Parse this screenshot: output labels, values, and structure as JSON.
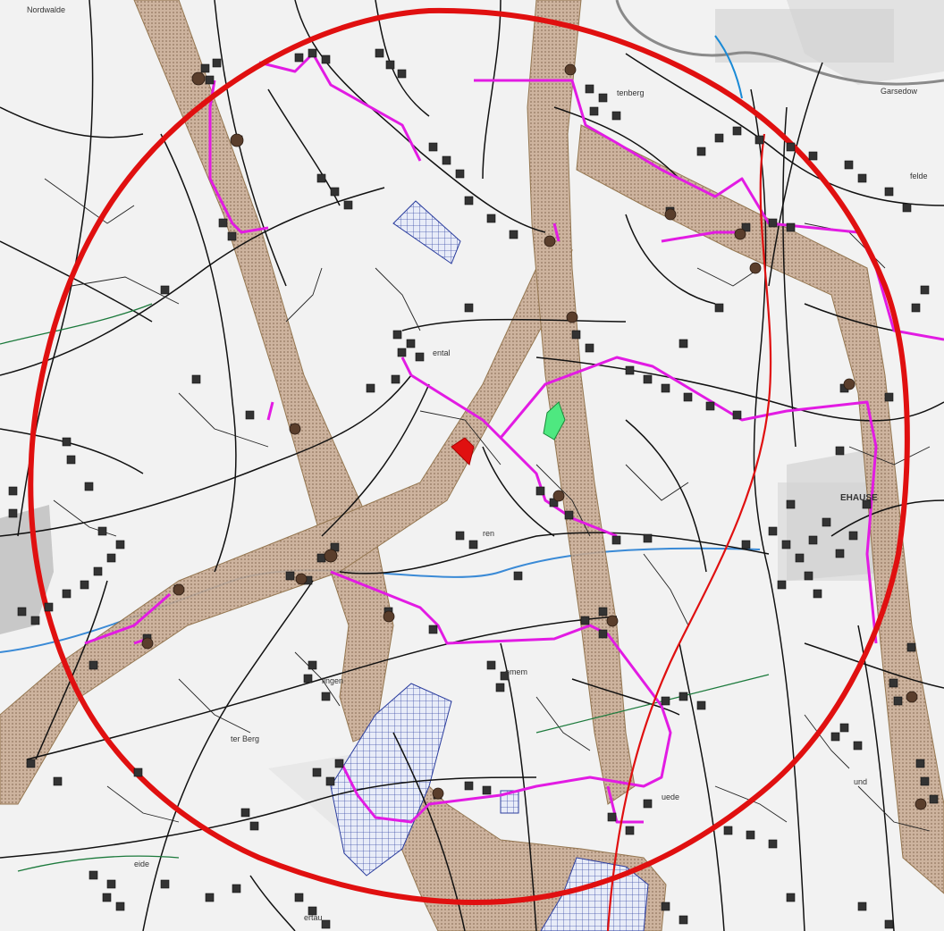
{
  "map": {
    "place_labels": [
      {
        "id": "nordwalde",
        "text": "Nordwalde"
      },
      {
        "id": "garsedow",
        "text": "Garsedow"
      },
      {
        "id": "tenberg",
        "text": "tenberg"
      },
      {
        "id": "felde",
        "text": "felde"
      },
      {
        "id": "ental",
        "text": "ental"
      },
      {
        "id": "ren",
        "text": "ren"
      },
      {
        "id": "lingen",
        "text": "lingen"
      },
      {
        "id": "emem",
        "text": "emem"
      },
      {
        "id": "ter-berg",
        "text": "ter Berg"
      },
      {
        "id": "uede",
        "text": "uede"
      },
      {
        "id": "eide",
        "text": "eide"
      },
      {
        "id": "ertau",
        "text": "ertau"
      },
      {
        "id": "und",
        "text": "und"
      },
      {
        "id": "town-se",
        "text": "EHAUSE"
      }
    ]
  }
}
